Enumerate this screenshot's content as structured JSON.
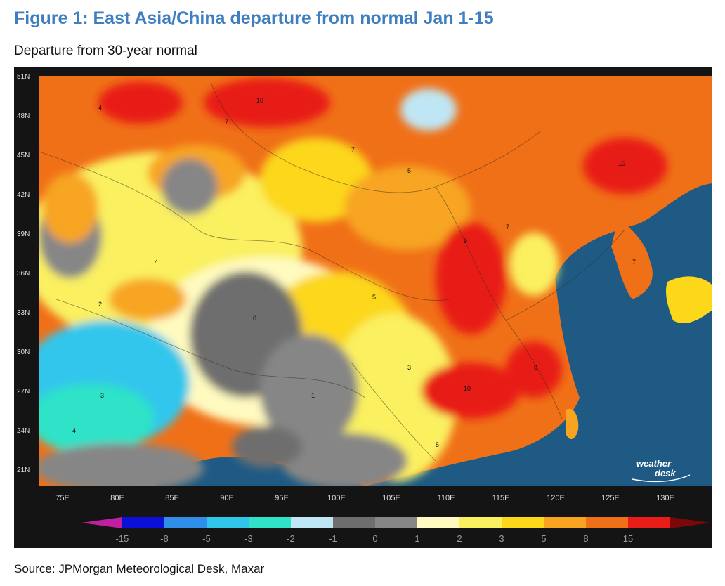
{
  "figure": {
    "title": "Figure 1: East Asia/China departure from normal Jan 1-15",
    "subtitle": "Departure from 30-year normal",
    "source": "Source: JPMorgan Meteorological Desk, Maxar"
  },
  "map": {
    "lat_ticks": [
      "51N",
      "48N",
      "45N",
      "42N",
      "39N",
      "36N",
      "33N",
      "30N",
      "27N",
      "24N",
      "21N"
    ],
    "lon_ticks": [
      "75E",
      "80E",
      "85E",
      "90E",
      "95E",
      "100E",
      "105E",
      "110E",
      "115E",
      "120E",
      "125E",
      "130E"
    ],
    "lat_range": [
      19,
      52
    ],
    "lon_range": [
      72,
      135
    ],
    "colors": {
      "ocean": "#1e5a84",
      "neg15": "#c020a0",
      "neg8": "#1a2cd8",
      "neg5": "#2f8ee8",
      "neg3": "#30c6ec",
      "neg2": "#2ee3c7",
      "neg1": "#bfe6f4",
      "zero_a": "#6e6e6e",
      "zero_b": "#868686",
      "pos1": "#fffac0",
      "pos2": "#faf060",
      "pos3": "#fcd71a",
      "pos5": "#f7a521",
      "pos8": "#f07018",
      "pos15": "#e81d18"
    },
    "logo": {
      "line1": "weather",
      "line2": "desk"
    }
  },
  "colorbar": {
    "labels": [
      "-15",
      "-8",
      "-5",
      "-3",
      "-2",
      "-1",
      "0",
      "1",
      "2",
      "3",
      "5",
      "8",
      "15"
    ],
    "swatches": [
      "#0b10d8",
      "#2f8ee8",
      "#30c6ec",
      "#2ee3c7",
      "#bfe6f4",
      "#6e6e6e",
      "#868686",
      "#fffac0",
      "#faf060",
      "#fcd71a",
      "#f7a521",
      "#f07018",
      "#e81d18"
    ],
    "end_low": "#c020a0",
    "end_high": "#7a0808"
  }
}
